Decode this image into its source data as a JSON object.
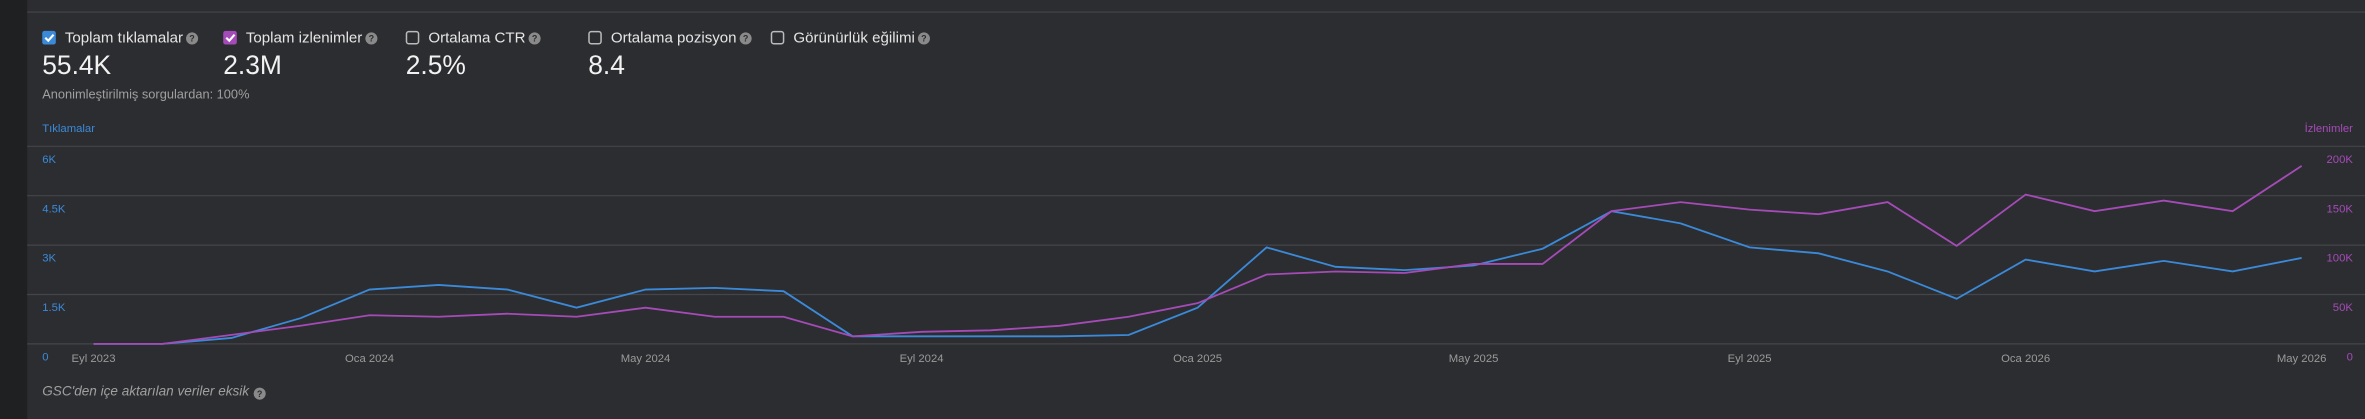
{
  "metrics": [
    {
      "label": "Toplam tıklamalar",
      "value": "55.4K",
      "checked": true,
      "color": "#3b8ad9"
    },
    {
      "label": "Toplam izlenimler",
      "value": "2.3M",
      "checked": true,
      "color": "#a54bb8"
    },
    {
      "label": "Ortalama CTR",
      "value": "2.5%",
      "checked": false
    },
    {
      "label": "Ortalama pozisyon",
      "value": "8.4",
      "checked": false
    },
    {
      "label": "Görünürlük eğilimi",
      "checked": false
    }
  ],
  "note": "Anonimleştirilmiş sorgulardan: 100%",
  "footer": "GSC'den içe aktarılan veriler eksik",
  "chart_data": {
    "type": "line",
    "y_label": "Tıklamalar",
    "y2_label": "İzlenimler",
    "categories": [
      "Eyl 2023",
      null,
      null,
      null,
      "Oca 2024",
      null,
      null,
      null,
      "May 2024",
      null,
      null,
      null,
      "Eyl 2024",
      null,
      null,
      null,
      "Oca 2025",
      null,
      null,
      null,
      "May 2025",
      null,
      null,
      null,
      "Eyl 2025",
      null,
      null,
      null,
      "Oca 2026",
      null,
      null,
      null,
      "May 2026"
    ],
    "series": [
      {
        "name": "Tıklamalar",
        "color": "#3b8ad9",
        "values": [
          0,
          0,
          180,
          780,
          1650,
          1790,
          1650,
          1100,
          1650,
          1700,
          1600,
          230,
          230,
          230,
          230,
          270,
          1100,
          2930,
          2340,
          2240,
          2380,
          2890,
          4030,
          3660,
          2930,
          2750,
          2200,
          1370,
          2560,
          2200,
          2520,
          2200,
          2610
        ]
      },
      {
        "name": "İzlenimler",
        "color": "#a54bb8",
        "axis": "y2",
        "values": [
          0,
          0,
          9160,
          18320,
          29010,
          27480,
          30540,
          27480,
          36650,
          27480,
          27480,
          7630,
          12210,
          13740,
          18320,
          27480,
          41230,
          70240,
          73290,
          71760,
          80920,
          80920,
          134350,
          143510,
          135870,
          131290,
          143510,
          99240,
          151170,
          134350,
          145040,
          134350,
          180150
        ]
      }
    ],
    "ylim": [
      0,
      6000
    ],
    "yticks": [
      0,
      {
        "value": 1500,
        "label": "1.5K"
      },
      {
        "value": 3000,
        "label": "3K"
      },
      {
        "value": 4500,
        "label": "4.5K"
      },
      {
        "value": 6000,
        "label": "6K"
      }
    ],
    "y2lim": [
      0,
      200000
    ],
    "y2ticks": [
      0,
      {
        "value": 50000,
        "label": "50K"
      },
      {
        "value": 100000,
        "label": "100K"
      },
      {
        "value": 150000,
        "label": "150K"
      },
      {
        "value": 200000,
        "label": "200K"
      }
    ],
    "grid": true
  }
}
